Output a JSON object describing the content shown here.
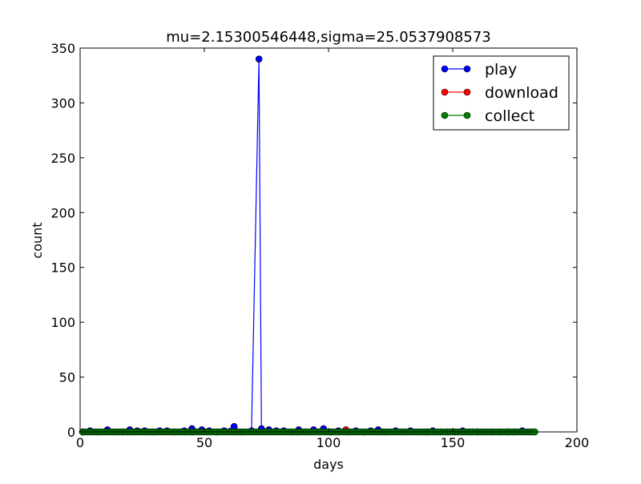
{
  "chart_data": {
    "type": "line",
    "title": "mu=2.15300546448,sigma=25.0537908573",
    "xlabel": "days",
    "ylabel": "count",
    "xlim": [
      0,
      200
    ],
    "ylim": [
      0,
      350
    ],
    "xticks": [
      0,
      50,
      100,
      150,
      200
    ],
    "yticks": [
      0,
      50,
      100,
      150,
      200,
      250,
      300,
      350
    ],
    "grid": false,
    "legend_position": "top-right",
    "series": [
      {
        "name": "play",
        "color": "#0000ff",
        "points": [
          [
            1,
            0
          ],
          [
            4,
            1
          ],
          [
            7,
            0
          ],
          [
            11,
            2
          ],
          [
            14,
            0
          ],
          [
            17,
            0
          ],
          [
            20,
            2
          ],
          [
            23,
            1
          ],
          [
            26,
            1
          ],
          [
            29,
            0
          ],
          [
            32,
            1
          ],
          [
            35,
            1
          ],
          [
            38,
            0
          ],
          [
            42,
            1
          ],
          [
            45,
            3
          ],
          [
            49,
            2
          ],
          [
            52,
            1
          ],
          [
            55,
            0
          ],
          [
            58,
            1
          ],
          [
            62,
            5
          ],
          [
            65,
            0
          ],
          [
            69,
            1
          ],
          [
            72,
            340
          ],
          [
            73,
            3
          ],
          [
            76,
            2
          ],
          [
            79,
            1
          ],
          [
            82,
            1
          ],
          [
            85,
            0
          ],
          [
            88,
            2
          ],
          [
            91,
            0
          ],
          [
            94,
            2
          ],
          [
            98,
            3
          ],
          [
            101,
            0
          ],
          [
            104,
            1
          ],
          [
            108,
            0
          ],
          [
            111,
            1
          ],
          [
            114,
            0
          ],
          [
            117,
            1
          ],
          [
            120,
            2
          ],
          [
            123,
            0
          ],
          [
            127,
            1
          ],
          [
            130,
            0
          ],
          [
            133,
            1
          ],
          [
            136,
            0
          ],
          [
            139,
            0
          ],
          [
            142,
            1
          ],
          [
            145,
            0
          ],
          [
            148,
            0
          ],
          [
            151,
            0
          ],
          [
            154,
            1
          ],
          [
            157,
            0
          ],
          [
            160,
            0
          ],
          [
            163,
            0
          ],
          [
            166,
            0
          ],
          [
            169,
            0
          ],
          [
            172,
            0
          ],
          [
            175,
            0
          ],
          [
            178,
            1
          ],
          [
            181,
            0
          ],
          [
            183,
            0
          ]
        ]
      },
      {
        "name": "download",
        "color": "#ff0000",
        "points": [
          [
            1,
            0
          ],
          [
            20,
            0
          ],
          [
            45,
            0
          ],
          [
            62,
            0
          ],
          [
            88,
            0
          ],
          [
            107,
            2
          ],
          [
            120,
            0
          ],
          [
            140,
            0
          ],
          [
            160,
            0
          ],
          [
            183,
            0
          ]
        ]
      },
      {
        "name": "collect",
        "color": "#008000",
        "x_start": 1,
        "x_end": 183,
        "x_step": 1,
        "y_constant": 0
      }
    ]
  }
}
